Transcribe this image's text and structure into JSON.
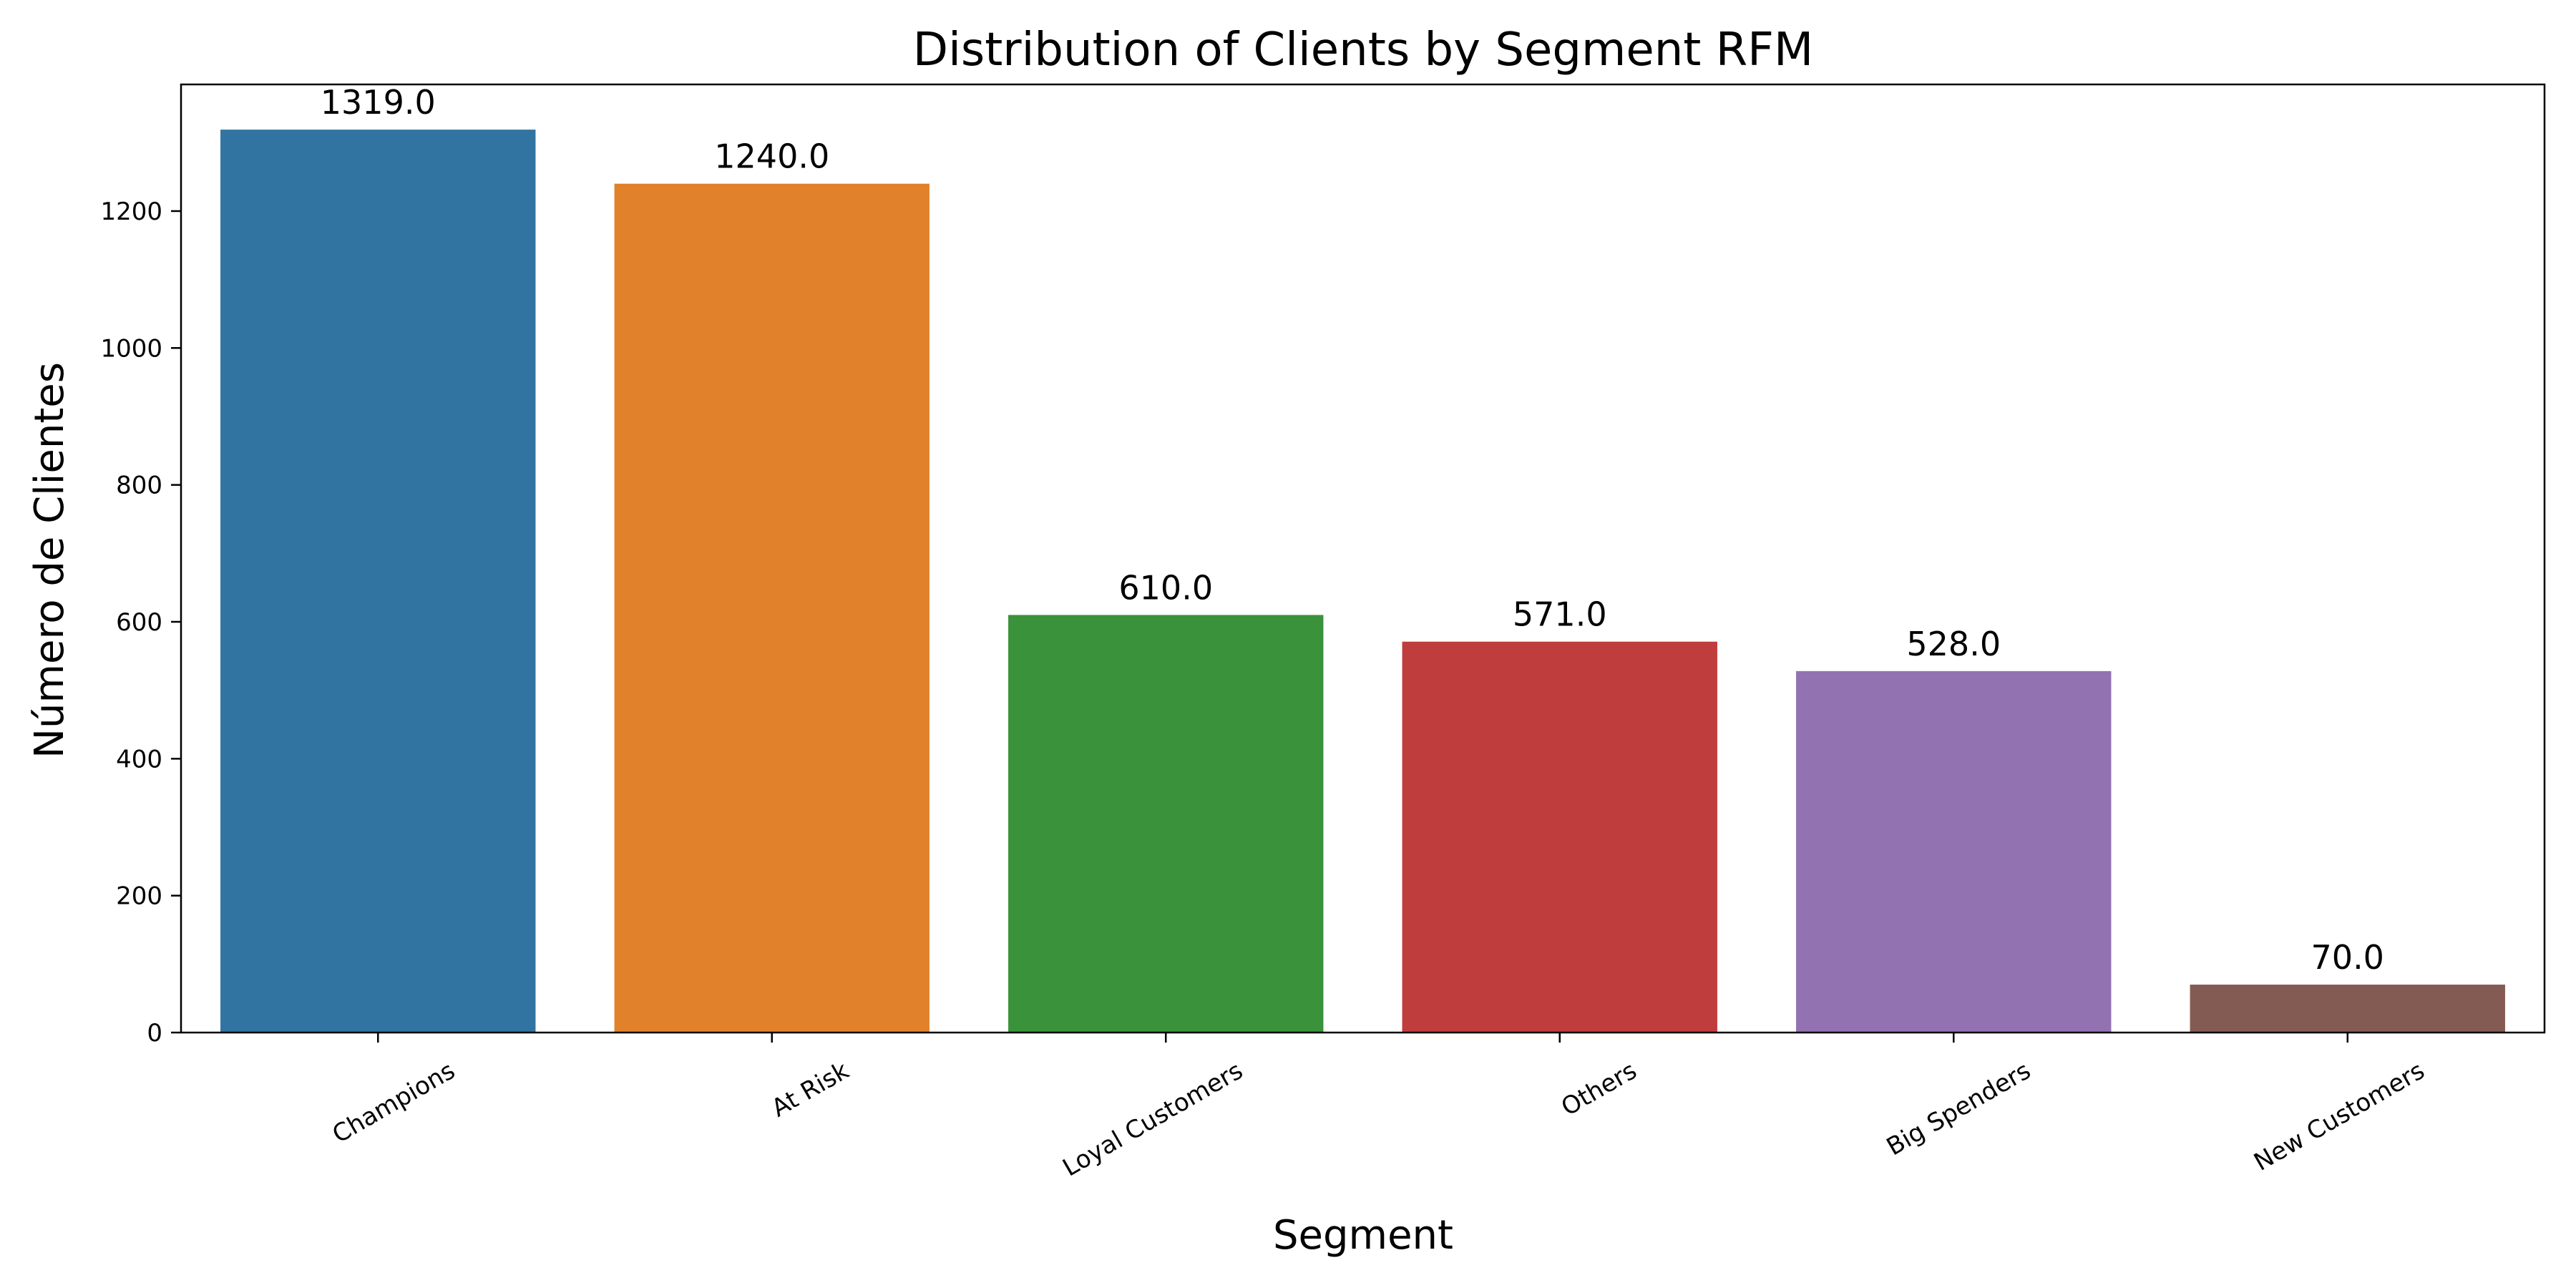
{
  "chart_data": {
    "type": "bar",
    "title": "Distribution of Clients by Segment RFM",
    "xlabel": "Segment",
    "ylabel": "Número de Clientes",
    "categories": [
      "Champions",
      "At Risk",
      "Loyal Customers",
      "Others",
      "Big Spenders",
      "New Customers"
    ],
    "values": [
      1319,
      1240,
      610,
      571,
      528,
      70
    ],
    "value_labels": [
      "1319.0",
      "1240.0",
      "610.0",
      "571.0",
      "528.0",
      "70.0"
    ],
    "colors": [
      "#3274a1",
      "#e1812c",
      "#3a923a",
      "#c03d3e",
      "#9372b2",
      "#845b53"
    ],
    "ylim": [
      0,
      1385
    ],
    "yticks": [
      0,
      200,
      400,
      600,
      800,
      1000,
      1200
    ],
    "x_tick_rotation_deg": 30,
    "grid": false,
    "legend": false
  }
}
